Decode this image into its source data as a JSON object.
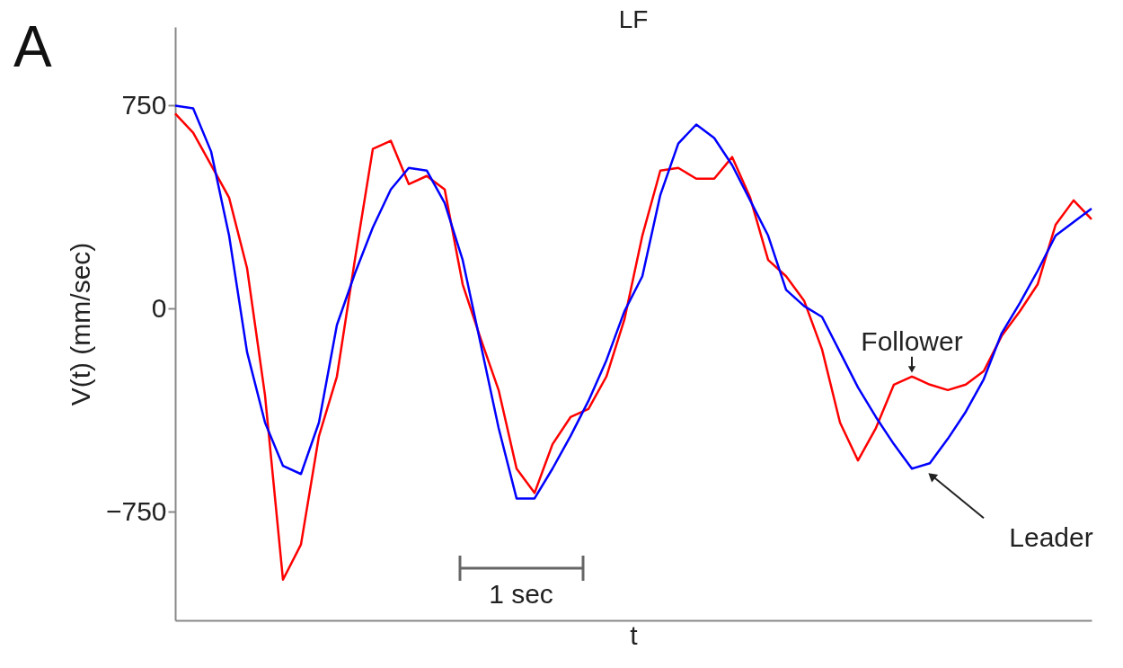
{
  "chart_data": {
    "type": "line",
    "title": "LF",
    "xlabel": "t",
    "ylabel": "V(t) (mm/sec)",
    "annotations": [
      "A",
      "1 sec"
    ],
    "categories": [
      null,
      null,
      null,
      null,
      null,
      null,
      null,
      null,
      null,
      null,
      null,
      null,
      null,
      null,
      null,
      null,
      null,
      null,
      null,
      null,
      null,
      null,
      null,
      null,
      null,
      null,
      null,
      null,
      null,
      null,
      null,
      null,
      null,
      null,
      null,
      null,
      null,
      null,
      null,
      null,
      null,
      null,
      null,
      null,
      null,
      null,
      null,
      null,
      null,
      null,
      null,
      null
    ],
    "series": [
      {
        "name": "Follower",
        "color": "#ff0000",
        "values": [
          720,
          650,
          530,
          410,
          150,
          -320,
          -1000,
          -870,
          -470,
          -250,
          180,
          590,
          620,
          460,
          490,
          440,
          90,
          -110,
          -300,
          -590,
          -680,
          -500,
          -400,
          -370,
          -250,
          -40,
          270,
          510,
          520,
          480,
          480,
          560,
          410,
          180,
          120,
          30,
          -150,
          -420,
          -560,
          -440,
          -280,
          -250,
          -280,
          -300,
          -280,
          -230,
          -100,
          -10,
          90,
          310,
          400,
          330
        ]
      },
      {
        "name": "Leader",
        "color": "#0000ff",
        "values": [
          750,
          740,
          580,
          270,
          -160,
          -420,
          -580,
          -610,
          -420,
          -60,
          130,
          300,
          440,
          520,
          510,
          390,
          180,
          -130,
          -440,
          -700,
          -700,
          -590,
          -470,
          -340,
          -190,
          -10,
          120,
          420,
          610,
          680,
          630,
          530,
          400,
          270,
          70,
          10,
          -30,
          -160,
          -290,
          -400,
          -500,
          -590,
          -570,
          -480,
          -380,
          -260,
          -90,
          20,
          140,
          270,
          320,
          370
        ]
      }
    ],
    "ylim": [
      -1150,
      1040
    ],
    "yticks": [
      750,
      0,
      -750
    ],
    "tick_labels": "y",
    "grid": false,
    "line_style": "solid",
    "marker": "none"
  }
}
